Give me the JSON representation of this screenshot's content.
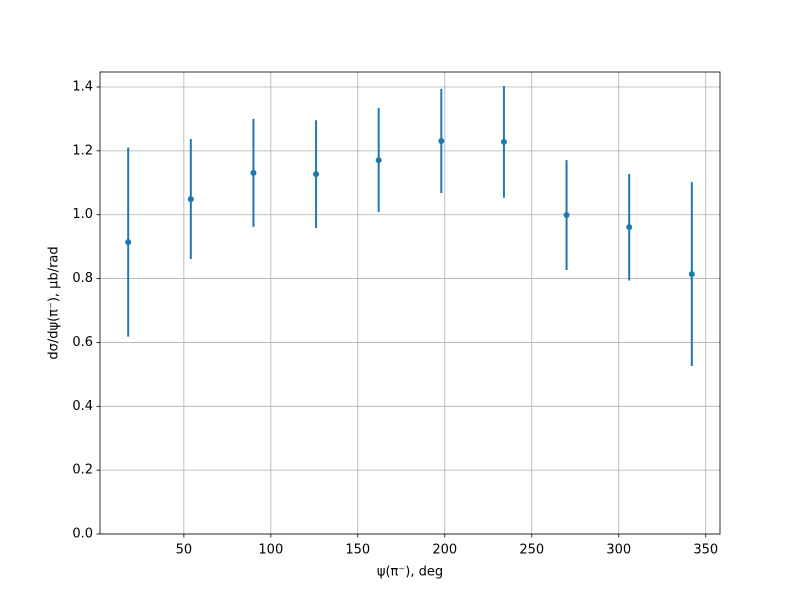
{
  "chart_data": {
    "type": "errorbar",
    "xlabel": "ψ(π⁻), deg",
    "ylabel": "dσ/dψ(π⁻), μb/rad",
    "x": [
      18,
      54,
      90,
      126,
      162,
      198,
      234,
      270,
      306,
      342
    ],
    "values": [
      0.914,
      1.049,
      1.131,
      1.127,
      1.171,
      1.231,
      1.228,
      0.999,
      0.961,
      0.814
    ],
    "errors": [
      0.296,
      0.188,
      0.169,
      0.169,
      0.163,
      0.163,
      0.175,
      0.172,
      0.167,
      0.288
    ],
    "color": "#1f77b4",
    "xlim": [
      1.8,
      358.2
    ],
    "ylim": [
      0,
      1.447
    ],
    "xticks": [
      50,
      100,
      150,
      200,
      250,
      300,
      350
    ],
    "yticks": [
      {
        "value": 0,
        "label": "0.0"
      },
      0.2,
      0.4,
      0.6,
      0.8,
      {
        "value": 1,
        "label": "1.0"
      },
      1.2,
      1.4
    ],
    "grid": true
  }
}
